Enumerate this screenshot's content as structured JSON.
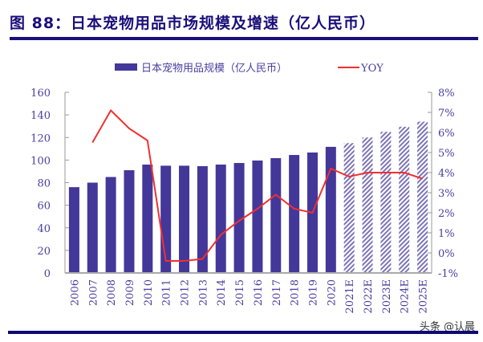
{
  "title": "图 88：日本宠物用品市场规模及增速（亿人民币）",
  "watermark": "头条 @认晨",
  "chart_data": {
    "type": "bar+line",
    "categories": [
      "2006",
      "2007",
      "2008",
      "2009",
      "2010",
      "2011",
      "2012",
      "2013",
      "2014",
      "2015",
      "2016",
      "2017",
      "2018",
      "2019",
      "2020",
      "2021E",
      "2022E",
      "2023E",
      "2024E",
      "2025E"
    ],
    "series": [
      {
        "name": "日本宠物用品规模（亿人民币）",
        "type": "bar",
        "axis": "left",
        "color": "#43379a",
        "values": [
          76,
          80,
          85,
          91,
          96,
          95,
          95,
          94.6,
          96,
          97.4,
          99.6,
          101.7,
          104.5,
          106.7,
          111.7,
          115,
          120,
          125,
          129.5,
          134
        ],
        "forecast_style": "hatched",
        "forecast_from": "2021E"
      },
      {
        "name": "YOY",
        "type": "line",
        "axis": "right",
        "color": "#f03030",
        "values": [
          null,
          5.5,
          7.1,
          6.2,
          5.6,
          -0.4,
          -0.4,
          -0.3,
          0.9,
          1.6,
          2.2,
          2.9,
          2.2,
          2.0,
          4.2,
          3.8,
          4.0,
          4.0,
          4.0,
          3.7
        ]
      }
    ],
    "y_left": {
      "ylim": [
        0,
        160
      ],
      "ticks": [
        "0",
        "20",
        "40",
        "60",
        "80",
        "100",
        "120",
        "140",
        "160"
      ]
    },
    "y_right": {
      "ylim": [
        -1,
        8
      ],
      "ticks": [
        "-1%",
        "0%",
        "1%",
        "2%",
        "3%",
        "4%",
        "5%",
        "6%",
        "7%",
        "8%"
      ]
    },
    "legend": "top-center",
    "grid": false
  }
}
